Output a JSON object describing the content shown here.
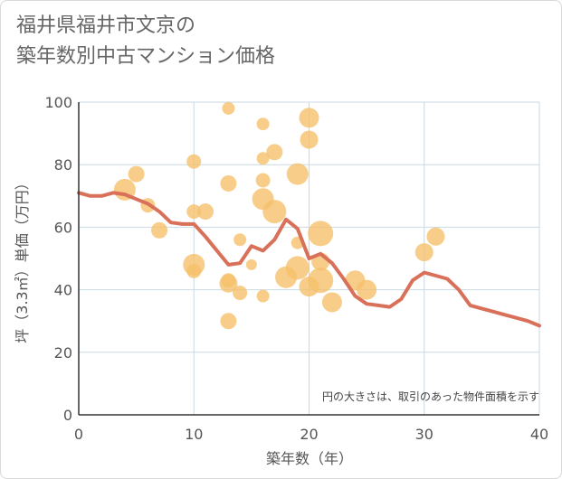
{
  "title": "福井県福井市文京の\n築年数別中古マンション価格",
  "chart_data": {
    "type": "scatter",
    "title": "福井県福井市文京の築年数別中古マンション価格",
    "xlabel": "築年数（年）",
    "ylabel": "坪（3.3㎡）単価（万円）",
    "xlim": [
      0,
      40
    ],
    "ylim": [
      0,
      100
    ],
    "xticks": [
      0,
      10,
      20,
      30,
      40
    ],
    "yticks": [
      0,
      20,
      40,
      60,
      80,
      100
    ],
    "grid": true,
    "annotation": "円の大きさは、取引のあった物件面積を示す",
    "colors": {
      "bubble": "#f5c06b",
      "line": "#d9705a",
      "grid": "#c9d9e3",
      "axis": "#333333"
    },
    "bubbles": [
      {
        "x": 4,
        "y": 72,
        "size": 12
      },
      {
        "x": 5,
        "y": 77,
        "size": 9
      },
      {
        "x": 6,
        "y": 67,
        "size": 8
      },
      {
        "x": 7,
        "y": 59,
        "size": 9
      },
      {
        "x": 10,
        "y": 81,
        "size": 8
      },
      {
        "x": 10,
        "y": 65,
        "size": 8
      },
      {
        "x": 10,
        "y": 48,
        "size": 12
      },
      {
        "x": 10,
        "y": 46,
        "size": 8
      },
      {
        "x": 11,
        "y": 65,
        "size": 9
      },
      {
        "x": 13,
        "y": 98,
        "size": 7
      },
      {
        "x": 13,
        "y": 74,
        "size": 9
      },
      {
        "x": 13,
        "y": 43,
        "size": 8
      },
      {
        "x": 13,
        "y": 42,
        "size": 10
      },
      {
        "x": 13,
        "y": 30,
        "size": 9
      },
      {
        "x": 14,
        "y": 56,
        "size": 7
      },
      {
        "x": 14,
        "y": 39,
        "size": 8
      },
      {
        "x": 15,
        "y": 48,
        "size": 6
      },
      {
        "x": 16,
        "y": 93,
        "size": 7
      },
      {
        "x": 16,
        "y": 82,
        "size": 7
      },
      {
        "x": 16,
        "y": 75,
        "size": 8
      },
      {
        "x": 16,
        "y": 69,
        "size": 12
      },
      {
        "x": 16,
        "y": 38,
        "size": 7
      },
      {
        "x": 17,
        "y": 84,
        "size": 9
      },
      {
        "x": 17,
        "y": 65,
        "size": 13
      },
      {
        "x": 18,
        "y": 44,
        "size": 12
      },
      {
        "x": 19,
        "y": 77,
        "size": 12
      },
      {
        "x": 19,
        "y": 55,
        "size": 7
      },
      {
        "x": 19,
        "y": 47,
        "size": 13
      },
      {
        "x": 20,
        "y": 95,
        "size": 11
      },
      {
        "x": 20,
        "y": 88,
        "size": 10
      },
      {
        "x": 20,
        "y": 41,
        "size": 11
      },
      {
        "x": 21,
        "y": 58,
        "size": 14
      },
      {
        "x": 21,
        "y": 49,
        "size": 10
      },
      {
        "x": 21,
        "y": 43,
        "size": 14
      },
      {
        "x": 22,
        "y": 36,
        "size": 11
      },
      {
        "x": 24,
        "y": 43,
        "size": 11
      },
      {
        "x": 25,
        "y": 40,
        "size": 11
      },
      {
        "x": 30,
        "y": 52,
        "size": 10
      },
      {
        "x": 31,
        "y": 57,
        "size": 10
      }
    ],
    "line": {
      "x": [
        0,
        1,
        2,
        3,
        4,
        5,
        6,
        7,
        8,
        9,
        10,
        11,
        12,
        13,
        14,
        15,
        16,
        17,
        18,
        19,
        20,
        21,
        22,
        23,
        24,
        25,
        26,
        27,
        28,
        29,
        30,
        31,
        32,
        33,
        34,
        35,
        36,
        37,
        38,
        39,
        40
      ],
      "y": [
        71,
        70,
        70,
        71,
        70.5,
        69,
        67.5,
        65,
        61.5,
        61,
        61,
        57,
        52.5,
        48,
        48.5,
        54,
        52.5,
        56,
        62.5,
        59.5,
        50,
        51.5,
        48.5,
        43.5,
        38,
        35.5,
        35,
        34.5,
        37,
        43,
        45.5,
        44.5,
        43.5,
        40,
        35,
        34,
        33,
        32,
        31,
        30,
        28.5
      ]
    }
  }
}
